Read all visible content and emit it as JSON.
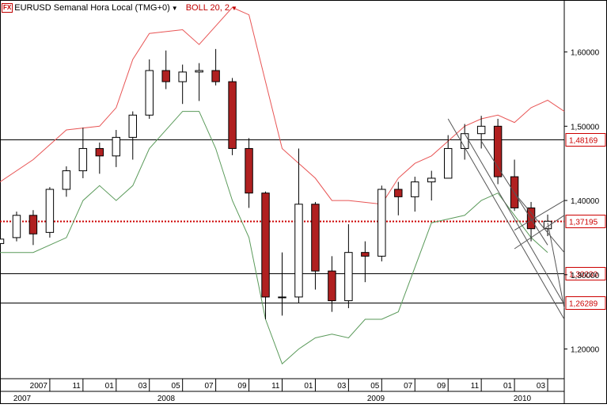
{
  "header": {
    "fx_badge": "FX",
    "title": "EURUSD Semanal Hora Local (TMG+0)",
    "indicator": "BOLL 20, 2"
  },
  "colors": {
    "upper_band": "#e85555",
    "lower_band": "#5a9a5a",
    "candle_up": "#ffffff",
    "candle_down": "#b02020",
    "price_line": "#cc0000",
    "level_line": "#000000",
    "trend_line": "#555555",
    "tag_text": "#cc0000"
  },
  "chart_data": {
    "type": "candlestick",
    "symbol": "EURUSD",
    "timeframe": "Semanal",
    "x_range": [
      "2007-06",
      "2010-04"
    ],
    "ylim": [
      1.16,
      1.67
    ],
    "y_ticks": [
      "1,60000",
      "1,50000",
      "1,40000",
      "1,30000",
      "1,20000"
    ],
    "month_labels": [
      "2007",
      "11",
      "01",
      "03",
      "05",
      "07",
      "09",
      "11",
      "01",
      "03",
      "05",
      "07",
      "09",
      "11",
      "01",
      "03"
    ],
    "year_labels": [
      "2007",
      "2008",
      "2009",
      "2010"
    ],
    "horizontal_levels": [
      {
        "value": 1.48169,
        "label": "1,48169"
      },
      {
        "value": 1.3023,
        "label": "1,30230"
      },
      {
        "value": 1.26289,
        "label": "1,26289"
      }
    ],
    "current_price": {
      "value": 1.37195,
      "label": "1,37195"
    },
    "bollinger": {
      "name": "BOLL 20, 2",
      "upper_points": [
        [
          "2007-06",
          1.425
        ],
        [
          "2007-08",
          1.455
        ],
        [
          "2007-10",
          1.495
        ],
        [
          "2007-12",
          1.5
        ],
        [
          "2008-01",
          1.525
        ],
        [
          "2008-02",
          1.59
        ],
        [
          "2008-03",
          1.625
        ],
        [
          "2008-05",
          1.63
        ],
        [
          "2008-06",
          1.61
        ],
        [
          "2008-07",
          1.635
        ],
        [
          "2008-08",
          1.66
        ],
        [
          "2008-09",
          1.65
        ],
        [
          "2008-10",
          1.56
        ],
        [
          "2008-11",
          1.47
        ],
        [
          "2008-12",
          1.45
        ],
        [
          "2009-01",
          1.43
        ],
        [
          "2009-02",
          1.4
        ],
        [
          "2009-03",
          1.4
        ],
        [
          "2009-05",
          1.395
        ],
        [
          "2009-06",
          1.43
        ],
        [
          "2009-07",
          1.45
        ],
        [
          "2009-08",
          1.46
        ],
        [
          "2009-09",
          1.48
        ],
        [
          "2009-10",
          1.5
        ],
        [
          "2009-11",
          1.51
        ],
        [
          "2009-12",
          1.515
        ],
        [
          "2010-01",
          1.505
        ],
        [
          "2010-02",
          1.525
        ],
        [
          "2010-03",
          1.535
        ],
        [
          "2010-04",
          1.52
        ]
      ],
      "lower_points": [
        [
          "2007-06",
          1.33
        ],
        [
          "2007-08",
          1.33
        ],
        [
          "2007-10",
          1.35
        ],
        [
          "2007-11",
          1.4
        ],
        [
          "2007-12",
          1.42
        ],
        [
          "2008-01",
          1.4
        ],
        [
          "2008-02",
          1.42
        ],
        [
          "2008-03",
          1.47
        ],
        [
          "2008-05",
          1.52
        ],
        [
          "2008-06",
          1.52
        ],
        [
          "2008-07",
          1.47
        ],
        [
          "2008-08",
          1.4
        ],
        [
          "2008-09",
          1.35
        ],
        [
          "2008-10",
          1.24
        ],
        [
          "2008-11",
          1.18
        ],
        [
          "2008-12",
          1.2
        ],
        [
          "2009-01",
          1.215
        ],
        [
          "2009-02",
          1.22
        ],
        [
          "2009-03",
          1.215
        ],
        [
          "2009-04",
          1.24
        ],
        [
          "2009-05",
          1.24
        ],
        [
          "2009-06",
          1.25
        ],
        [
          "2009-07",
          1.31
        ],
        [
          "2009-08",
          1.37
        ],
        [
          "2009-09",
          1.375
        ],
        [
          "2009-10",
          1.38
        ],
        [
          "2009-11",
          1.4
        ],
        [
          "2009-12",
          1.41
        ],
        [
          "2010-01",
          1.38
        ],
        [
          "2010-02",
          1.35
        ],
        [
          "2010-03",
          1.33
        ]
      ]
    },
    "candles": [
      {
        "t": "2007-06",
        "o": 1.342,
        "h": 1.352,
        "l": 1.335,
        "c": 1.348
      },
      {
        "t": "2007-07",
        "o": 1.35,
        "h": 1.385,
        "l": 1.345,
        "c": 1.38
      },
      {
        "t": "2007-08",
        "o": 1.38,
        "h": 1.387,
        "l": 1.34,
        "c": 1.355
      },
      {
        "t": "2007-09",
        "o": 1.357,
        "h": 1.418,
        "l": 1.35,
        "c": 1.415
      },
      {
        "t": "2007-10",
        "o": 1.415,
        "h": 1.446,
        "l": 1.405,
        "c": 1.44
      },
      {
        "t": "2007-11",
        "o": 1.44,
        "h": 1.498,
        "l": 1.43,
        "c": 1.47
      },
      {
        "t": "2007-12",
        "o": 1.47,
        "h": 1.478,
        "l": 1.436,
        "c": 1.46
      },
      {
        "t": "2008-01",
        "o": 1.46,
        "h": 1.495,
        "l": 1.445,
        "c": 1.485
      },
      {
        "t": "2008-02",
        "o": 1.485,
        "h": 1.52,
        "l": 1.455,
        "c": 1.515
      },
      {
        "t": "2008-03",
        "o": 1.515,
        "h": 1.59,
        "l": 1.51,
        "c": 1.575
      },
      {
        "t": "2008-04",
        "o": 1.575,
        "h": 1.602,
        "l": 1.55,
        "c": 1.56
      },
      {
        "t": "2008-05",
        "o": 1.56,
        "h": 1.583,
        "l": 1.53,
        "c": 1.573
      },
      {
        "t": "2008-06",
        "o": 1.573,
        "h": 1.585,
        "l": 1.534,
        "c": 1.575
      },
      {
        "t": "2008-07",
        "o": 1.575,
        "h": 1.604,
        "l": 1.555,
        "c": 1.56
      },
      {
        "t": "2008-08",
        "o": 1.56,
        "h": 1.565,
        "l": 1.461,
        "c": 1.47
      },
      {
        "t": "2008-09",
        "o": 1.47,
        "h": 1.484,
        "l": 1.39,
        "c": 1.41
      },
      {
        "t": "2008-10",
        "o": 1.41,
        "h": 1.412,
        "l": 1.24,
        "c": 1.27
      },
      {
        "t": "2008-11",
        "o": 1.27,
        "h": 1.33,
        "l": 1.245,
        "c": 1.27
      },
      {
        "t": "2008-12",
        "o": 1.27,
        "h": 1.47,
        "l": 1.262,
        "c": 1.395
      },
      {
        "t": "2009-01",
        "o": 1.395,
        "h": 1.398,
        "l": 1.28,
        "c": 1.305
      },
      {
        "t": "2009-02",
        "o": 1.305,
        "h": 1.325,
        "l": 1.25,
        "c": 1.265
      },
      {
        "t": "2009-03",
        "o": 1.265,
        "h": 1.368,
        "l": 1.255,
        "c": 1.33
      },
      {
        "t": "2009-04",
        "o": 1.33,
        "h": 1.345,
        "l": 1.29,
        "c": 1.325
      },
      {
        "t": "2009-05",
        "o": 1.325,
        "h": 1.42,
        "l": 1.318,
        "c": 1.415
      },
      {
        "t": "2009-06",
        "o": 1.415,
        "h": 1.425,
        "l": 1.38,
        "c": 1.405
      },
      {
        "t": "2009-07",
        "o": 1.405,
        "h": 1.432,
        "l": 1.385,
        "c": 1.425
      },
      {
        "t": "2009-08",
        "o": 1.425,
        "h": 1.44,
        "l": 1.4,
        "c": 1.43
      },
      {
        "t": "2009-09",
        "o": 1.43,
        "h": 1.488,
        "l": 1.43,
        "c": 1.47
      },
      {
        "t": "2009-10",
        "o": 1.47,
        "h": 1.503,
        "l": 1.455,
        "c": 1.49
      },
      {
        "t": "2009-11",
        "o": 1.49,
        "h": 1.514,
        "l": 1.47,
        "c": 1.5
      },
      {
        "t": "2009-12",
        "o": 1.5,
        "h": 1.51,
        "l": 1.422,
        "c": 1.432
      },
      {
        "t": "2010-01",
        "o": 1.432,
        "h": 1.455,
        "l": 1.386,
        "c": 1.39
      },
      {
        "t": "2010-02",
        "o": 1.39,
        "h": 1.398,
        "l": 1.345,
        "c": 1.362
      },
      {
        "t": "2010-03",
        "o": 1.362,
        "h": 1.381,
        "l": 1.352,
        "c": 1.372
      }
    ],
    "trend_lines": [
      {
        "from": [
          "2009-09",
          1.51
        ],
        "to": [
          "2010-04",
          1.24
        ]
      },
      {
        "from": [
          "2009-10",
          1.49
        ],
        "to": [
          "2010-04",
          1.26
        ]
      },
      {
        "from": [
          "2009-11",
          1.48
        ],
        "to": [
          "2010-03",
          1.34
        ]
      },
      {
        "from": [
          "2010-01",
          1.36
        ],
        "to": [
          "2010-04",
          1.4
        ]
      },
      {
        "from": [
          "2010-01",
          1.335
        ],
        "to": [
          "2010-04",
          1.38
        ]
      },
      {
        "from": [
          "2010-01",
          1.41
        ],
        "to": [
          "2010-04",
          1.33
        ]
      },
      {
        "from": [
          "2010-03",
          1.37
        ],
        "to": [
          "2010-04",
          1.255
        ]
      }
    ]
  }
}
